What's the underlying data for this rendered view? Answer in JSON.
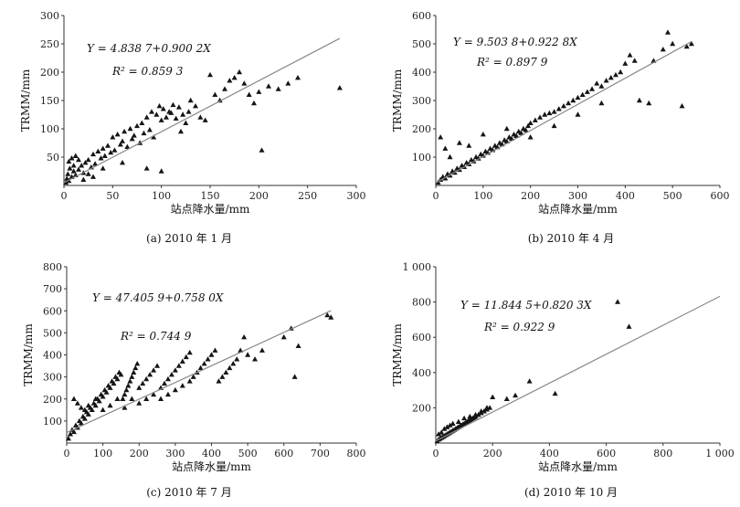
{
  "figure": {
    "x_axis_label": "站点降水量/mm",
    "y_axis_label": "TRMM/mm"
  },
  "chart_data": [
    {
      "type": "scatter",
      "caption": "(a) 2010 年 1 月",
      "equation": "Y = 4.838 7+0.900 2X",
      "r2": "R² = 0.859 3",
      "xlabel": "站点降水量/mm",
      "ylabel": "TRMM/mm",
      "xlim": [
        0,
        300
      ],
      "ylim": [
        0,
        300
      ],
      "xticks": [
        0,
        50,
        100,
        150,
        200,
        250,
        300
      ],
      "yticks": [
        50,
        100,
        150,
        200,
        250,
        300
      ],
      "xtick_labels": [
        "0",
        "50",
        "100",
        "150",
        "200",
        "250",
        "300"
      ],
      "ytick_labels": [
        "50",
        "100",
        "150",
        "200",
        "250",
        "300"
      ],
      "fit": {
        "intercept": 4.8387,
        "slope": 0.9002,
        "x_range": [
          0,
          283
        ]
      },
      "points": [
        [
          2,
          5
        ],
        [
          3,
          12
        ],
        [
          5,
          8
        ],
        [
          4,
          20
        ],
        [
          6,
          30
        ],
        [
          8,
          15
        ],
        [
          10,
          25
        ],
        [
          12,
          18
        ],
        [
          15,
          28
        ],
        [
          18,
          35
        ],
        [
          20,
          22
        ],
        [
          22,
          40
        ],
        [
          25,
          45
        ],
        [
          28,
          32
        ],
        [
          30,
          55
        ],
        [
          32,
          38
        ],
        [
          35,
          60
        ],
        [
          38,
          48
        ],
        [
          40,
          65
        ],
        [
          42,
          52
        ],
        [
          45,
          70
        ],
        [
          48,
          58
        ],
        [
          50,
          85
        ],
        [
          52,
          62
        ],
        [
          55,
          90
        ],
        [
          58,
          72
        ],
        [
          60,
          78
        ],
        [
          62,
          95
        ],
        [
          65,
          68
        ],
        [
          68,
          100
        ],
        [
          70,
          82
        ],
        [
          72,
          88
        ],
        [
          75,
          105
        ],
        [
          78,
          75
        ],
        [
          80,
          110
        ],
        [
          82,
          92
        ],
        [
          85,
          120
        ],
        [
          88,
          98
        ],
        [
          90,
          130
        ],
        [
          92,
          85
        ],
        [
          95,
          125
        ],
        [
          98,
          140
        ],
        [
          100,
          115
        ],
        [
          102,
          135
        ],
        [
          105,
          120
        ],
        [
          108,
          130
        ],
        [
          110,
          128
        ],
        [
          112,
          142
        ],
        [
          115,
          118
        ],
        [
          118,
          138
        ],
        [
          120,
          95
        ],
        [
          122,
          125
        ],
        [
          125,
          110
        ],
        [
          128,
          130
        ],
        [
          130,
          150
        ],
        [
          135,
          140
        ],
        [
          140,
          120
        ],
        [
          145,
          115
        ],
        [
          150,
          195
        ],
        [
          155,
          160
        ],
        [
          160,
          150
        ],
        [
          165,
          170
        ],
        [
          170,
          185
        ],
        [
          175,
          190
        ],
        [
          180,
          200
        ],
        [
          185,
          180
        ],
        [
          190,
          160
        ],
        [
          195,
          145
        ],
        [
          200,
          165
        ],
        [
          203,
          62
        ],
        [
          210,
          175
        ],
        [
          220,
          170
        ],
        [
          230,
          180
        ],
        [
          240,
          190
        ],
        [
          283,
          172
        ],
        [
          5,
          42
        ],
        [
          8,
          48
        ],
        [
          12,
          52
        ],
        [
          15,
          45
        ],
        [
          10,
          35
        ],
        [
          100,
          25
        ],
        [
          85,
          30
        ],
        [
          60,
          40
        ],
        [
          40,
          30
        ],
        [
          25,
          20
        ],
        [
          30,
          15
        ],
        [
          20,
          10
        ]
      ]
    },
    {
      "type": "scatter",
      "caption": "(b) 2010 年 4 月",
      "equation": "Y = 9.503 8+0.922 8X",
      "r2": "R² = 0.897 9",
      "xlabel": "站点降水量/mm",
      "ylabel": "TRMM/mm",
      "xlim": [
        0,
        600
      ],
      "ylim": [
        0,
        600
      ],
      "xticks": [
        0,
        100,
        200,
        300,
        400,
        500,
        600
      ],
      "yticks": [
        100,
        200,
        300,
        400,
        500,
        600
      ],
      "xtick_labels": [
        "0",
        "100",
        "200",
        "300",
        "400",
        "500",
        "600"
      ],
      "ytick_labels": [
        "100",
        "200",
        "300",
        "400",
        "500",
        "600"
      ],
      "fit": {
        "intercept": 9.5038,
        "slope": 0.9228,
        "x_range": [
          0,
          540
        ]
      },
      "points": [
        [
          5,
          10
        ],
        [
          10,
          20
        ],
        [
          15,
          30
        ],
        [
          20,
          25
        ],
        [
          25,
          40
        ],
        [
          30,
          35
        ],
        [
          35,
          50
        ],
        [
          40,
          45
        ],
        [
          45,
          60
        ],
        [
          50,
          55
        ],
        [
          55,
          70
        ],
        [
          60,
          65
        ],
        [
          65,
          80
        ],
        [
          70,
          75
        ],
        [
          75,
          90
        ],
        [
          80,
          85
        ],
        [
          85,
          100
        ],
        [
          90,
          95
        ],
        [
          95,
          110
        ],
        [
          100,
          105
        ],
        [
          105,
          120
        ],
        [
          110,
          115
        ],
        [
          115,
          130
        ],
        [
          120,
          125
        ],
        [
          125,
          140
        ],
        [
          130,
          135
        ],
        [
          135,
          150
        ],
        [
          140,
          145
        ],
        [
          145,
          160
        ],
        [
          150,
          155
        ],
        [
          155,
          170
        ],
        [
          160,
          165
        ],
        [
          165,
          180
        ],
        [
          170,
          175
        ],
        [
          175,
          190
        ],
        [
          180,
          185
        ],
        [
          185,
          200
        ],
        [
          190,
          195
        ],
        [
          195,
          210
        ],
        [
          200,
          220
        ],
        [
          210,
          230
        ],
        [
          220,
          240
        ],
        [
          230,
          250
        ],
        [
          240,
          255
        ],
        [
          250,
          260
        ],
        [
          260,
          270
        ],
        [
          270,
          280
        ],
        [
          280,
          290
        ],
        [
          290,
          300
        ],
        [
          300,
          310
        ],
        [
          310,
          320
        ],
        [
          320,
          330
        ],
        [
          330,
          340
        ],
        [
          340,
          360
        ],
        [
          350,
          350
        ],
        [
          360,
          370
        ],
        [
          370,
          380
        ],
        [
          380,
          390
        ],
        [
          390,
          400
        ],
        [
          400,
          430
        ],
        [
          410,
          460
        ],
        [
          420,
          440
        ],
        [
          430,
          300
        ],
        [
          450,
          290
        ],
        [
          460,
          440
        ],
        [
          480,
          480
        ],
        [
          490,
          540
        ],
        [
          500,
          500
        ],
        [
          520,
          280
        ],
        [
          530,
          490
        ],
        [
          540,
          500
        ],
        [
          10,
          170
        ],
        [
          20,
          130
        ],
        [
          30,
          100
        ],
        [
          50,
          150
        ],
        [
          70,
          140
        ],
        [
          100,
          180
        ],
        [
          150,
          200
        ],
        [
          200,
          170
        ],
        [
          250,
          210
        ],
        [
          300,
          250
        ],
        [
          350,
          290
        ]
      ]
    },
    {
      "type": "scatter",
      "caption": "(c) 2010 年 7 月",
      "equation": "Y = 47.405 9+0.758 0X",
      "r2": "R² = 0.744 9",
      "xlabel": "站点降水量/mm",
      "ylabel": "TRMM/mm",
      "xlim": [
        0,
        800
      ],
      "ylim": [
        0,
        800
      ],
      "xticks": [
        0,
        100,
        200,
        300,
        400,
        500,
        600,
        700,
        800
      ],
      "yticks": [
        100,
        200,
        300,
        400,
        500,
        600,
        700,
        800
      ],
      "xtick_labels": [
        "0",
        "100",
        "200",
        "300",
        "400",
        "500",
        "600",
        "700",
        "800"
      ],
      "ytick_labels": [
        "100",
        "200",
        "300",
        "400",
        "500",
        "600",
        "700",
        "800"
      ],
      "fit": {
        "intercept": 47.4059,
        "slope": 0.758,
        "x_range": [
          0,
          730
        ]
      },
      "points": [
        [
          5,
          20
        ],
        [
          10,
          40
        ],
        [
          15,
          60
        ],
        [
          20,
          50
        ],
        [
          25,
          80
        ],
        [
          30,
          70
        ],
        [
          35,
          100
        ],
        [
          40,
          90
        ],
        [
          45,
          120
        ],
        [
          50,
          110
        ],
        [
          55,
          140
        ],
        [
          60,
          130
        ],
        [
          65,
          160
        ],
        [
          70,
          150
        ],
        [
          75,
          180
        ],
        [
          80,
          170
        ],
        [
          85,
          200
        ],
        [
          90,
          190
        ],
        [
          95,
          220
        ],
        [
          100,
          210
        ],
        [
          105,
          240
        ],
        [
          110,
          230
        ],
        [
          115,
          260
        ],
        [
          120,
          250
        ],
        [
          125,
          280
        ],
        [
          130,
          270
        ],
        [
          135,
          300
        ],
        [
          140,
          290
        ],
        [
          145,
          320
        ],
        [
          150,
          310
        ],
        [
          155,
          200
        ],
        [
          160,
          220
        ],
        [
          165,
          240
        ],
        [
          170,
          260
        ],
        [
          175,
          280
        ],
        [
          180,
          300
        ],
        [
          185,
          320
        ],
        [
          190,
          340
        ],
        [
          195,
          360
        ],
        [
          200,
          250
        ],
        [
          210,
          270
        ],
        [
          220,
          290
        ],
        [
          230,
          310
        ],
        [
          240,
          330
        ],
        [
          250,
          350
        ],
        [
          260,
          250
        ],
        [
          270,
          270
        ],
        [
          280,
          290
        ],
        [
          290,
          310
        ],
        [
          300,
          330
        ],
        [
          310,
          350
        ],
        [
          320,
          370
        ],
        [
          330,
          390
        ],
        [
          340,
          410
        ],
        [
          350,
          300
        ],
        [
          360,
          320
        ],
        [
          370,
          340
        ],
        [
          380,
          360
        ],
        [
          390,
          380
        ],
        [
          400,
          400
        ],
        [
          410,
          420
        ],
        [
          420,
          280
        ],
        [
          430,
          300
        ],
        [
          440,
          320
        ],
        [
          450,
          340
        ],
        [
          460,
          360
        ],
        [
          470,
          380
        ],
        [
          480,
          420
        ],
        [
          490,
          480
        ],
        [
          500,
          400
        ],
        [
          520,
          380
        ],
        [
          540,
          420
        ],
        [
          600,
          480
        ],
        [
          620,
          520
        ],
        [
          630,
          300
        ],
        [
          640,
          440
        ],
        [
          720,
          580
        ],
        [
          730,
          570
        ],
        [
          20,
          200
        ],
        [
          30,
          180
        ],
        [
          40,
          160
        ],
        [
          50,
          150
        ],
        [
          60,
          170
        ],
        [
          80,
          200
        ],
        [
          100,
          150
        ],
        [
          120,
          170
        ],
        [
          140,
          200
        ],
        [
          160,
          160
        ],
        [
          180,
          200
        ],
        [
          200,
          180
        ],
        [
          220,
          200
        ],
        [
          240,
          220
        ],
        [
          260,
          200
        ],
        [
          280,
          220
        ],
        [
          300,
          240
        ],
        [
          320,
          260
        ],
        [
          340,
          280
        ]
      ]
    },
    {
      "type": "scatter",
      "caption": "(d) 2010 年 10 月",
      "equation": "Y = 11.844 5+0.820 3X",
      "r2": "R² = 0.922 9",
      "xlabel": "站点降水量/mm",
      "ylabel": "TRMM/mm",
      "xlim": [
        0,
        1000
      ],
      "ylim": [
        0,
        1000
      ],
      "xticks": [
        0,
        200,
        400,
        600,
        800,
        1000
      ],
      "yticks": [
        200,
        400,
        600,
        800,
        1000
      ],
      "xtick_labels": [
        "0",
        "200",
        "400",
        "600",
        "800",
        "1 000"
      ],
      "ytick_labels": [
        "200",
        "400",
        "600",
        "800",
        "1 000"
      ],
      "fit": {
        "intercept": 11.8445,
        "slope": 0.8203,
        "x_range": [
          0,
          1000
        ]
      },
      "points": [
        [
          5,
          10
        ],
        [
          10,
          20
        ],
        [
          15,
          25
        ],
        [
          20,
          30
        ],
        [
          25,
          35
        ],
        [
          30,
          40
        ],
        [
          35,
          45
        ],
        [
          40,
          50
        ],
        [
          45,
          55
        ],
        [
          50,
          60
        ],
        [
          55,
          65
        ],
        [
          60,
          70
        ],
        [
          65,
          75
        ],
        [
          70,
          80
        ],
        [
          75,
          85
        ],
        [
          80,
          90
        ],
        [
          85,
          95
        ],
        [
          90,
          100
        ],
        [
          95,
          105
        ],
        [
          100,
          110
        ],
        [
          105,
          115
        ],
        [
          110,
          120
        ],
        [
          115,
          125
        ],
        [
          120,
          130
        ],
        [
          125,
          135
        ],
        [
          130,
          140
        ],
        [
          135,
          145
        ],
        [
          140,
          150
        ],
        [
          150,
          160
        ],
        [
          160,
          170
        ],
        [
          170,
          180
        ],
        [
          180,
          190
        ],
        [
          190,
          200
        ],
        [
          200,
          260
        ],
        [
          250,
          250
        ],
        [
          280,
          270
        ],
        [
          330,
          350
        ],
        [
          420,
          280
        ],
        [
          640,
          800
        ],
        [
          680,
          660
        ],
        [
          10,
          50
        ],
        [
          20,
          60
        ],
        [
          30,
          80
        ],
        [
          40,
          90
        ],
        [
          50,
          100
        ],
        [
          60,
          110
        ],
        [
          80,
          120
        ],
        [
          100,
          140
        ],
        [
          120,
          150
        ],
        [
          140,
          160
        ],
        [
          160,
          180
        ],
        [
          180,
          200
        ]
      ]
    }
  ]
}
